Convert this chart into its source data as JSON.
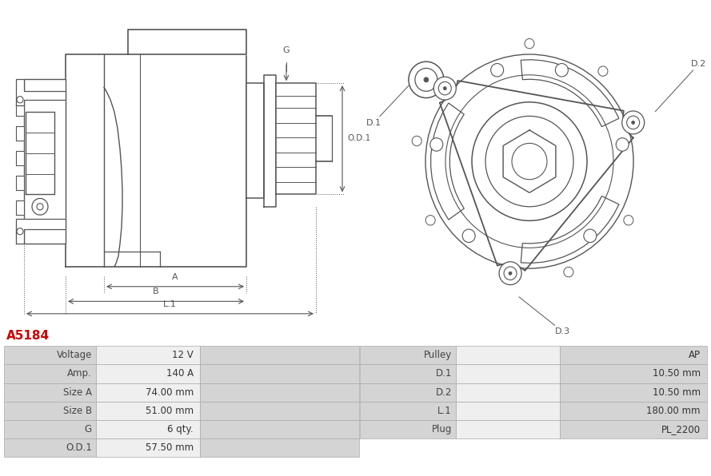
{
  "title": "A5184",
  "title_color": "#cc0000",
  "bg_color": "#ffffff",
  "table_rows": [
    [
      "Voltage",
      "12 V",
      "Pulley",
      "AP"
    ],
    [
      "Amp.",
      "140 A",
      "D.1",
      "10.50 mm"
    ],
    [
      "Size A",
      "74.00 mm",
      "D.2",
      "10.50 mm"
    ],
    [
      "Size B",
      "51.00 mm",
      "L.1",
      "180.00 mm"
    ],
    [
      "G",
      "6 qty.",
      "Plug",
      "PL_2200"
    ],
    [
      "O.D.1",
      "57.50 mm",
      "",
      ""
    ]
  ],
  "border_color": "#aaaaaa",
  "line_color": "#555555",
  "dim_line_color": "#555555"
}
